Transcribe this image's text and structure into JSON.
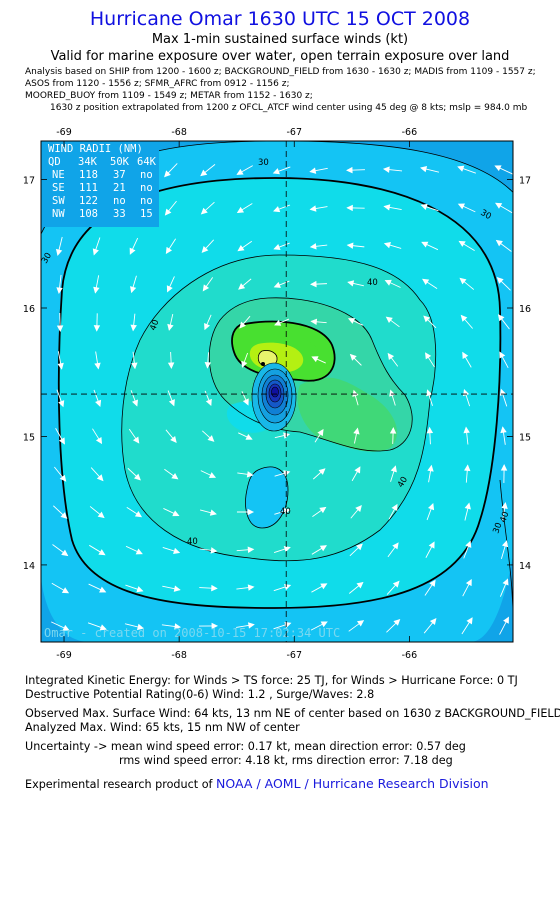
{
  "header": {
    "title": "Hurricane Omar 1630 UTC 15 OCT 2008",
    "subtitle1": "Max 1-min sustained surface winds (kt)",
    "subtitle2": "Valid for marine exposure over water, open terrain exposure over land"
  },
  "sources": [
    "Analysis based on  SHIP from 1200 - 1600 z;  BACKGROUND_FIELD from 1630 - 1630 z;  MADIS from 1109 - 1557 z;",
    "ASOS from 1120 - 1556 z;  SFMR_AFRC from 0912 - 1156 z;",
    "MOORED_BUOY from 1109 - 1549 z;  METAR from 1152 - 1630 z;",
    "1630 z position extrapolated from 1200 z OFCL_ATCF wind center using 45 deg @ 8 kts; mslp = 984.0 mb"
  ],
  "map": {
    "lon_ticks": [
      "-69",
      "-68",
      "-67",
      "-66"
    ],
    "lat_ticks": [
      "17",
      "16",
      "15",
      "14"
    ],
    "lon_range": [
      -69.2,
      -65.1
    ],
    "lat_range": [
      13.4,
      17.3
    ],
    "center": {
      "lon": -67.07,
      "lat": 15.33
    },
    "contour_labels": [
      "30",
      "30",
      "30",
      "40",
      "40",
      "40",
      "40",
      "40",
      "40",
      "30"
    ],
    "watermark": "Omar - created on 2008-10-15 17:02:34 UTC",
    "colors": {
      "level_20": "#10a4e8",
      "level_30": "#14c4f4",
      "level_35": "#10dcea",
      "level_40": "#20dccc",
      "level_45": "#34d6a8",
      "level_50": "#40d878",
      "level_60": "#48e030",
      "level_64": "#b4f012",
      "level_68": "#e8f46c",
      "core": "#1010b0"
    }
  },
  "wind_radii": {
    "title": "WIND RADII (NM)",
    "header": [
      "QD",
      "34K",
      "50K",
      "64K"
    ],
    "rows": [
      [
        "NE",
        "118",
        "37",
        "no"
      ],
      [
        "SE",
        "111",
        "21",
        "no"
      ],
      [
        "SW",
        "122",
        "no",
        "no"
      ],
      [
        "NW",
        "108",
        "33",
        "15"
      ]
    ]
  },
  "footer": {
    "ike": "Integrated Kinetic Energy:  for Winds > TS force: 25 TJ,  for Winds > Hurricane Force: 0 TJ",
    "dpr": "Destructive Potential Rating(0-6)   Wind: 1.2 , Surge/Waves: 2.8",
    "observed": "Observed Max. Surface Wind: 64 kts, 13 nm NE of center based on 1630 z BACKGROUND_FIELD",
    "analyzed": "Analyzed Max. Wind: 65 kts, 15 nm NW of center",
    "uncertainty1": "Uncertainty -> mean wind speed error: 0.17 kt,   mean direction error: 0.57 deg",
    "uncertainty2": "rms wind speed error: 4.18 kt,   rms direction error: 7.18 deg",
    "credit_prefix": "Experimental research product of ",
    "credit_link": "NOAA / AOML / Hurricane Research Division"
  }
}
